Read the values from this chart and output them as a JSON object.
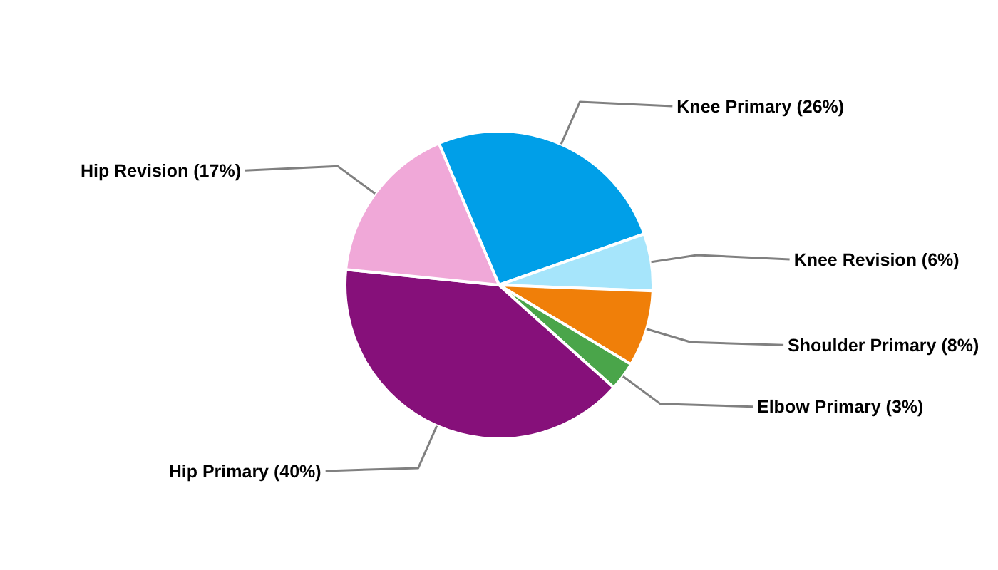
{
  "chart_data": {
    "type": "pie",
    "categories": [
      "Knee Primary",
      "Knee Revision",
      "Shoulder Primary",
      "Elbow Primary",
      "Hip Primary",
      "Hip Revision"
    ],
    "values": [
      26,
      6,
      8,
      3,
      40,
      17
    ],
    "value_labels": [
      "(26%)",
      "(6%)",
      "(8%)",
      "(3%)",
      "(40%)",
      "(17%)"
    ],
    "colors": [
      "#009fe8",
      "#a6e5fb",
      "#f07f09",
      "#4aa54a",
      "#86107a",
      "#f0a8d8"
    ]
  }
}
